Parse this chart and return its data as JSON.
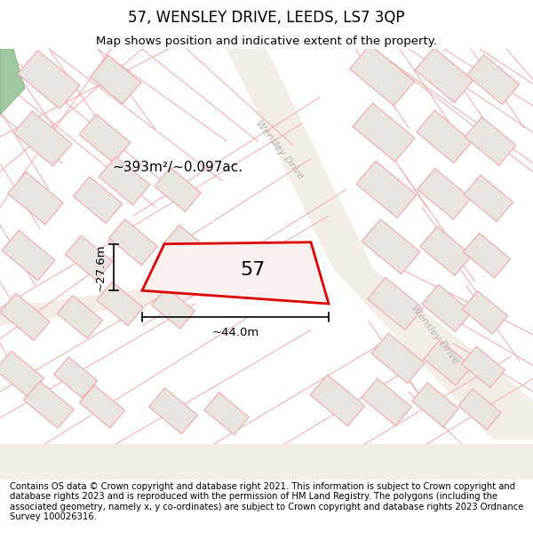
{
  "title": "57, WENSLEY DRIVE, LEEDS, LS7 3QP",
  "subtitle": "Map shows position and indicative extent of the property.",
  "area_label": "~393m²/~0.097ac.",
  "dim_width": "~44.0m",
  "dim_height": "~27.6m",
  "plot_number": "57",
  "copyright_text": "Contains OS data © Crown copyright and database right 2021. This information is subject to Crown copyright and database rights 2023 and is reproduced with the permission of HM Land Registry. The polygons (including the associated geometry, namely x, y co-ordinates) are subject to Crown copyright and database rights 2023 Ordnance Survey 100026316.",
  "map_bg": "#faf8f5",
  "building_fill": "#e8e4e0",
  "building_outline": "#f0a0a0",
  "plot_fill": "#faf0f0",
  "plot_outline": "#dd0000",
  "green_fill": "#a0c8a0",
  "green_outline": "#80a880",
  "road_fill": "#f0ece5",
  "wensley_color": "#b0b0b0",
  "title_fontsize": 12,
  "subtitle_fontsize": 9.5,
  "copyright_fontsize": 7.2,
  "plot_lw": 2.0,
  "building_lw": 0.7
}
